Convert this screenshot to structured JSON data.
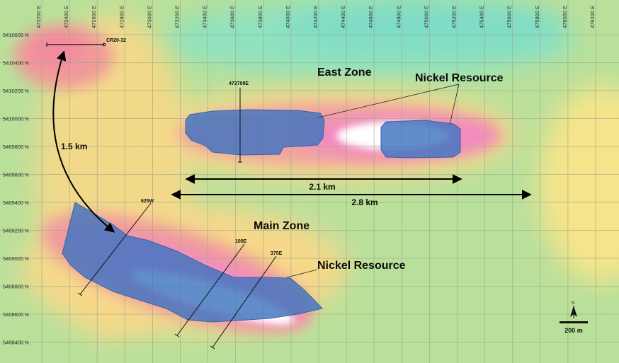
{
  "map": {
    "x_ticks": [
      "472200 E",
      "472400 E",
      "472600 E",
      "472800 E",
      "473000 E",
      "473200 E",
      "473400 E",
      "473600 E",
      "473800 E",
      "474000 E",
      "474200 E",
      "474400 E",
      "474600 E",
      "474800 E",
      "475000 E",
      "475200 E",
      "475400 E",
      "475600 E",
      "475800 E",
      "476000 E",
      "476200 E"
    ],
    "y_ticks": [
      "5410600 N",
      "5410400 N",
      "5410200 N",
      "5410000 N",
      "5409800 N",
      "5409600 N",
      "5409400 N",
      "5409200 N",
      "5409000 N",
      "5408800 N",
      "5408600 N",
      "5408400 N"
    ],
    "zones": {
      "east": "East Zone",
      "main": "Main Zone"
    },
    "resource_labels": {
      "east": "Nickel Resource",
      "main": "Nickel Resource"
    },
    "distances": {
      "d1": "2.1 km",
      "d2": "2.8 km",
      "d3": "1.5 km"
    },
    "drill_holes": {
      "cr": "CR20-32",
      "e473700": "473700E",
      "w625": "625W",
      "e100": "100E",
      "e375": "375E"
    },
    "scale_bar": {
      "label": "200 m",
      "north": "N"
    }
  }
}
